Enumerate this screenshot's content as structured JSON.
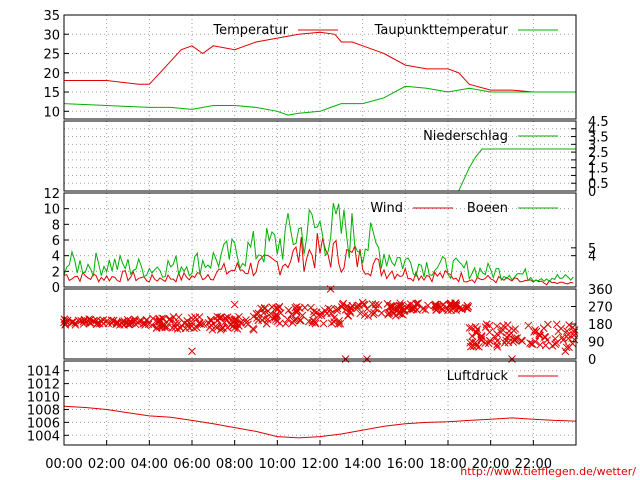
{
  "credit": "http://www.tiefflegen.de/wetter/",
  "chart_data": {
    "type": "line",
    "x_tick_labels": [
      "00:00",
      "02:00",
      "04:00",
      "06:00",
      "08:00",
      "10:00",
      "12:00",
      "14:00",
      "16:00",
      "18:00",
      "20:00",
      "22:00"
    ],
    "x_range_hours": [
      0,
      24
    ],
    "grid": true,
    "colors": {
      "red": "#e00000",
      "green": "#00b000"
    },
    "panels": [
      {
        "id": "temperature",
        "ylim": [
          8,
          35
        ],
        "y_ticks": [
          10,
          15,
          20,
          25,
          30,
          35
        ],
        "y_axis": "left",
        "legend": "top-right",
        "series": [
          {
            "name": "Temperatur",
            "color": "#e00000",
            "x": [
              0,
              2,
              3.5,
              4,
              4.5,
              5,
              5.5,
              6,
              6.5,
              7,
              8,
              9,
              10,
              11,
              12,
              12.7,
              13,
              13.5,
              14,
              15,
              16,
              17,
              18,
              18.5,
              19,
              20,
              21,
              22,
              23,
              24
            ],
            "y": [
              18,
              18,
              17,
              17,
              20,
              23,
              26,
              27,
              25,
              27,
              26,
              28,
              29,
              30,
              30.5,
              30,
              28,
              28,
              27,
              25,
              22,
              21,
              21,
              20,
              17,
              15.5,
              15.5,
              15,
              15,
              15
            ]
          },
          {
            "name": "Taupunkttemperatur",
            "color": "#00b000",
            "x": [
              0,
              2,
              4,
              5,
              6,
              7,
              8,
              9,
              10,
              10.5,
              11,
              12,
              12.5,
              13,
              14,
              15,
              16,
              17,
              18,
              19,
              20,
              21,
              22,
              23,
              24
            ],
            "y": [
              12,
              11.5,
              11,
              11,
              10.5,
              11.5,
              11.5,
              11,
              10,
              9,
              9.5,
              10,
              11,
              12,
              12,
              13.5,
              16.5,
              16,
              15,
              16,
              15,
              15,
              15,
              15,
              15
            ]
          }
        ]
      },
      {
        "id": "precipitation",
        "ylim": [
          0,
          4.5
        ],
        "y_ticks": [
          "0",
          "0.5",
          "1",
          "1.5",
          "2",
          "2.5",
          "3",
          "3.5",
          "4",
          "4.5"
        ],
        "y_axis": "right",
        "legend": "top-right",
        "series": [
          {
            "name": "Niederschlag",
            "color": "#00b000",
            "x": [
              0,
              18.5,
              18.7,
              19,
              19.3,
              19.6,
              24
            ],
            "y": [
              0,
              0,
              0.6,
              1.5,
              2.2,
              2.7,
              2.7
            ]
          }
        ]
      },
      {
        "id": "wind",
        "ylim": [
          0,
          12
        ],
        "y_ticks_left": [
          0,
          2,
          4,
          6,
          8,
          10,
          12
        ],
        "y_ticks_right": [
          "4",
          "5"
        ],
        "legend": "top-right",
        "series": [
          {
            "name": "Wind",
            "color": "#e00000",
            "x": [
              0,
              1,
              2,
              3,
              4,
              5,
              6,
              7,
              8,
              9,
              10,
              11,
              12,
              13,
              14,
              15,
              16,
              17,
              18,
              19,
              20,
              21,
              22,
              23,
              24
            ],
            "y": [
              1.5,
              1.3,
              1.2,
              1.4,
              1,
              1.2,
              1.3,
              1.8,
              2.2,
              2.5,
              3,
              4.2,
              4.5,
              4,
              3.5,
              2.2,
              1.8,
              1.5,
              1.4,
              1.2,
              1,
              0.8,
              0.6,
              0.5,
              0.4
            ]
          },
          {
            "name": "Boeen",
            "color": "#00b000",
            "x": [
              0,
              1,
              2,
              3,
              4,
              5,
              6,
              7,
              8,
              9,
              10,
              11,
              12,
              13,
              14,
              15,
              16,
              17,
              18,
              19,
              20,
              21,
              22,
              23,
              24
            ],
            "y": [
              3,
              2.8,
              3,
              2.6,
              2.4,
              2.7,
              3,
              3.5,
              4.2,
              4.8,
              5.5,
              7,
              7.5,
              7.2,
              6,
              4.4,
              3.2,
              2.8,
              2.5,
              2.2,
              2,
              1.8,
              1.4,
              1.2,
              1
            ]
          }
        ]
      },
      {
        "id": "wind_direction",
        "ylim": [
          0,
          360
        ],
        "y_ticks": [
          0,
          90,
          180,
          270,
          360
        ],
        "y_axis": "right",
        "marker": "x",
        "color": "#e00000",
        "clusters": [
          {
            "x0": 0,
            "x1": 4,
            "y0": 175,
            "y1": 205
          },
          {
            "x0": 4,
            "x1": 9,
            "y0": 150,
            "y1": 220
          },
          {
            "x0": 9,
            "x1": 13,
            "y0": 180,
            "y1": 270
          },
          {
            "x0": 13,
            "x1": 16,
            "y0": 220,
            "y1": 290
          },
          {
            "x0": 16,
            "x1": 19,
            "y0": 250,
            "y1": 290
          },
          {
            "x0": 19,
            "x1": 24,
            "y0": 60,
            "y1": 180
          }
        ],
        "outliers": [
          {
            "x": 13.2,
            "y": 0
          },
          {
            "x": 14.2,
            "y": 0
          },
          {
            "x": 14,
            "y": 290
          },
          {
            "x": 8,
            "y": 280
          },
          {
            "x": 21,
            "y": 0
          },
          {
            "x": 6,
            "y": 40
          },
          {
            "x": 23.5,
            "y": 40
          },
          {
            "x": 12.5,
            "y": 360
          }
        ]
      },
      {
        "id": "pressure",
        "ylim": [
          1002.5,
          1015.5
        ],
        "y_ticks": [
          1004,
          1006,
          1008,
          1010,
          1012,
          1014
        ],
        "y_axis": "left",
        "legend": "top-right",
        "series": [
          {
            "name": "Luftdruck",
            "color": "#e00000",
            "x": [
              0,
              1,
              2,
              3,
              4,
              5,
              6,
              7,
              8,
              9,
              10,
              11,
              12,
              13,
              14,
              15,
              16,
              17,
              18,
              19,
              20,
              21,
              22,
              23,
              24
            ],
            "y": [
              1008.5,
              1008.3,
              1008,
              1007.5,
              1007,
              1006.8,
              1006.3,
              1005.8,
              1005.2,
              1004.6,
              1003.8,
              1003.6,
              1003.8,
              1004.2,
              1004.8,
              1005.4,
              1005.8,
              1006.0,
              1006.1,
              1006.3,
              1006.5,
              1006.7,
              1006.5,
              1006.3,
              1006.2
            ]
          }
        ]
      }
    ]
  }
}
